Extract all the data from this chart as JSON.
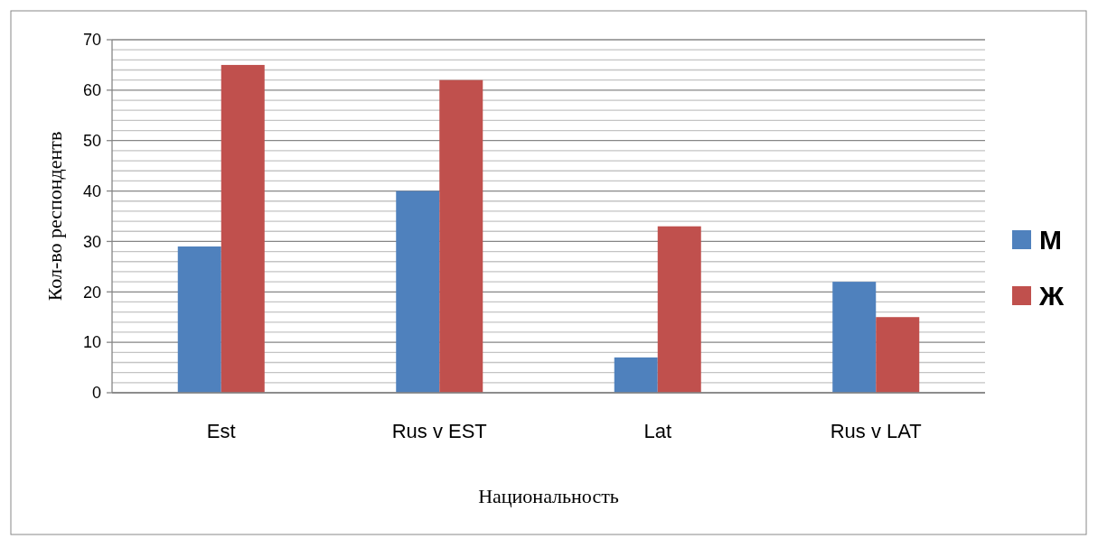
{
  "chart_data": {
    "type": "bar",
    "xlabel": "Национальность",
    "ylabel": "Кол-во респондентв",
    "categories": [
      "Est",
      "Rus v EST",
      "Lat",
      "Rus v LAT"
    ],
    "series": [
      {
        "name": "М",
        "color": "#4f81bd",
        "values": [
          29,
          40,
          7,
          22
        ]
      },
      {
        "name": "Ж",
        "color": "#c0504d",
        "values": [
          65,
          62,
          33,
          15
        ]
      }
    ],
    "ylim": [
      0,
      70
    ],
    "yticks": [
      0,
      {
        "value": 2,
        "label": null
      },
      {
        "value": 4,
        "label": null
      },
      {
        "value": 6,
        "label": null
      },
      {
        "value": 8,
        "label": null
      },
      10,
      {
        "value": 12,
        "label": null
      },
      {
        "value": 14,
        "label": null
      },
      {
        "value": 16,
        "label": null
      },
      {
        "value": 18,
        "label": null
      },
      20,
      {
        "value": 22,
        "label": null
      },
      {
        "value": 24,
        "label": null
      },
      {
        "value": 26,
        "label": null
      },
      {
        "value": 28,
        "label": null
      },
      30,
      {
        "value": 32,
        "label": null
      },
      {
        "value": 34,
        "label": null
      },
      {
        "value": 36,
        "label": null
      },
      {
        "value": 38,
        "label": null
      },
      40,
      {
        "value": 42,
        "label": null
      },
      {
        "value": 44,
        "label": null
      },
      {
        "value": 46,
        "label": null
      },
      {
        "value": 48,
        "label": null
      },
      50,
      {
        "value": 52,
        "label": null
      },
      {
        "value": 54,
        "label": null
      },
      {
        "value": 56,
        "label": null
      },
      {
        "value": 58,
        "label": null
      },
      60,
      {
        "value": 62,
        "label": null
      },
      {
        "value": 64,
        "label": null
      },
      {
        "value": 66,
        "label": null
      },
      {
        "value": 68,
        "label": null
      },
      70
    ],
    "grid": true,
    "legend": "right"
  }
}
